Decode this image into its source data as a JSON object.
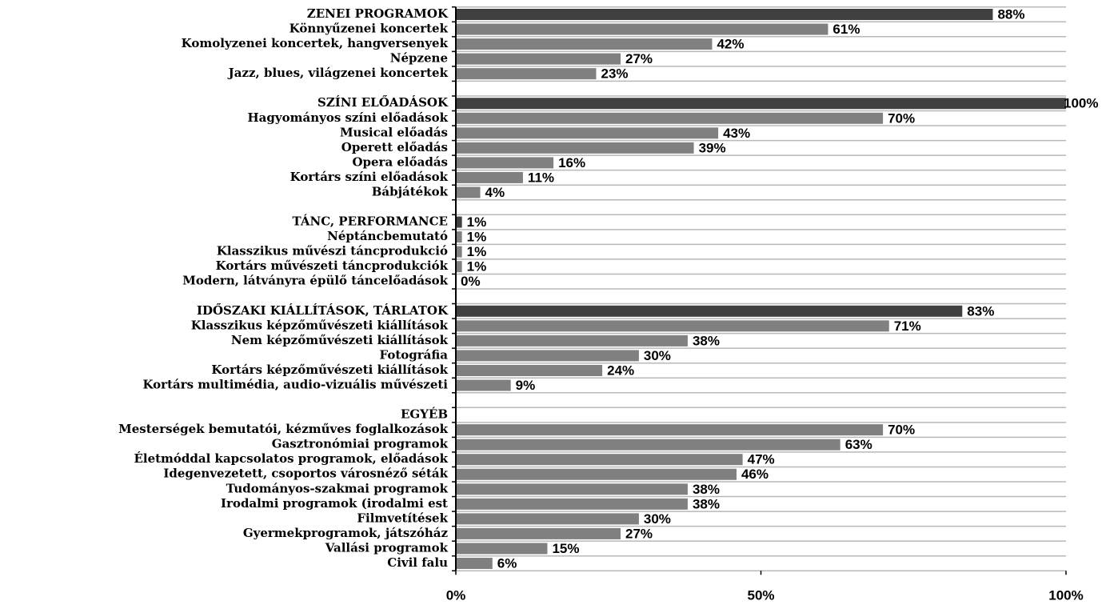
{
  "chart_data": {
    "type": "hbar",
    "categories": [
      "ZENEI PROGRAMOK",
      "Könnyűzenei koncertek",
      "Komolyzenei koncertek, hangversenyek",
      "Népzene",
      "Jazz, blues, világzenei koncertek",
      null,
      "SZÍNI ELŐADÁSOK",
      "Hagyományos színi előadások",
      "Musical előadás",
      "Operett előadás",
      "Opera előadás",
      "Kortárs színi előadások",
      "Bábjátékok",
      null,
      "TÁNC, PERFORMANCE",
      "Néptáncbemutató",
      "Klasszikus művészi táncprodukció",
      "Kortárs művészeti táncprodukciók",
      "Modern, látványra épülő táncelőadások",
      null,
      "IDŐSZAKI KIÁLLÍTÁSOK, TÁRLATOK",
      "Klasszikus képzőművészeti kiállítások",
      "Nem képzőművészeti kiállítások",
      "Fotográfia",
      "Kortárs képzőművészeti kiállítások",
      "Kortárs multimédia, audio-vizuális művészeti",
      null,
      "EGYÉB",
      "Mesterségek bemutatói, kézműves foglalkozások",
      "Gasztronómiai programok",
      "Életmóddal kapcsolatos programok, előadások",
      "Idegenvezetett, csoportos városnéző séták",
      "Tudományos-szakmai programok",
      "Irodalmi programok (irodalmi est",
      "Filmvetítések",
      "Gyermekprogramok, játszóház",
      "Vallási programok",
      "Civil falu"
    ],
    "values": [
      88,
      61,
      42,
      27,
      23,
      null,
      100,
      70,
      43,
      39,
      16,
      11,
      4,
      null,
      1,
      1,
      1,
      1,
      0,
      null,
      83,
      71,
      38,
      30,
      24,
      9,
      null,
      null,
      70,
      63,
      47,
      46,
      38,
      38,
      30,
      27,
      15,
      6
    ],
    "value_labels": [
      "88%",
      "61%",
      "42%",
      "27%",
      "23%",
      null,
      "100%",
      "70%",
      "43%",
      "39%",
      "16%",
      "11%",
      "4%",
      null,
      "1%",
      "1%",
      "1%",
      "1%",
      "0%",
      null,
      "83%",
      "71%",
      "38%",
      "30%",
      "24%",
      "9%",
      null,
      null,
      "70%",
      "63%",
      "47%",
      "46%",
      "38%",
      "38%",
      "30%",
      "27%",
      "15%",
      "6%"
    ],
    "colors": [
      "#404040",
      "#808080",
      "#808080",
      "#808080",
      "#808080",
      null,
      "#404040",
      "#808080",
      "#808080",
      "#808080",
      "#808080",
      "#808080",
      "#808080",
      null,
      "#404040",
      "#808080",
      "#808080",
      "#808080",
      "#808080",
      null,
      "#404040",
      "#808080",
      "#808080",
      "#808080",
      "#808080",
      "#808080",
      null,
      null,
      "#808080",
      "#808080",
      "#808080",
      "#808080",
      "#808080",
      "#808080",
      "#808080",
      "#808080",
      "#808080",
      "#808080"
    ],
    "xlim": [
      0,
      100
    ],
    "xticks": [
      {
        "value": 0,
        "label": "0%"
      },
      {
        "value": 50,
        "label": "50%"
      },
      {
        "value": 100,
        "label": "100%"
      }
    ]
  }
}
